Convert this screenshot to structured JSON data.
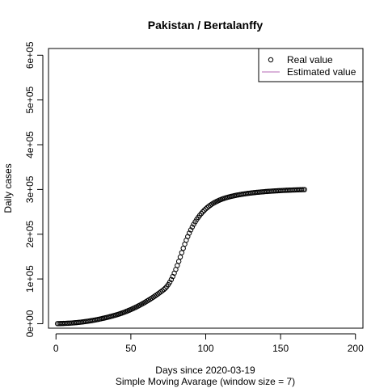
{
  "chart_data": {
    "type": "scatter",
    "title": "Pakistan / Bertalanffy",
    "xlabel": "Days since 2020-03-19",
    "subtitle": "Simple Moving Avarage (window size = 7)",
    "ylabel": "Daily cases",
    "xlim": [
      -5,
      205
    ],
    "ylim": [
      -10000,
      615000
    ],
    "xticks": [
      0,
      50,
      100,
      150,
      200
    ],
    "xtick_labels": [
      "0",
      "50",
      "100",
      "150",
      "200"
    ],
    "yticks": [
      0,
      100000,
      200000,
      300000,
      400000,
      500000,
      600000
    ],
    "ytick_labels": [
      "0e+00",
      "1e+05",
      "2e+05",
      "3e+05",
      "4e+05",
      "5e+05",
      "6e+05"
    ],
    "legend": {
      "position": "top-right",
      "entries": [
        {
          "label": "Real value",
          "marker": "open-circle",
          "color": "#000000"
        },
        {
          "label": "Estimated value",
          "marker": "line",
          "color": "#b469b4"
        }
      ]
    },
    "series": [
      {
        "name": "Real value",
        "marker": "open-circle",
        "color": "#000000",
        "x": [
          1,
          2,
          3,
          4,
          5,
          6,
          7,
          8,
          9,
          10,
          11,
          12,
          13,
          14,
          15,
          16,
          17,
          18,
          19,
          20,
          21,
          22,
          23,
          24,
          25,
          26,
          27,
          28,
          29,
          30,
          31,
          32,
          33,
          34,
          35,
          36,
          37,
          38,
          39,
          40,
          41,
          42,
          43,
          44,
          45,
          46,
          47,
          48,
          49,
          50,
          51,
          52,
          53,
          54,
          55,
          56,
          57,
          58,
          59,
          60,
          61,
          62,
          63,
          64,
          65,
          66,
          67,
          68,
          69,
          70,
          71,
          72,
          73,
          74,
          75,
          76,
          77,
          78,
          79,
          80,
          81,
          82,
          83,
          84,
          85,
          86,
          87,
          88,
          89,
          90,
          91,
          92,
          93,
          94,
          95,
          96,
          97,
          98,
          99,
          100,
          101,
          102,
          103,
          104,
          105,
          106,
          107,
          108,
          109,
          110,
          111,
          112,
          113,
          114,
          115,
          116,
          117,
          118,
          119,
          120,
          121,
          122,
          123,
          124,
          125,
          126,
          127,
          128,
          129,
          130,
          131,
          132,
          133,
          134,
          135,
          136,
          137,
          138,
          139,
          140,
          141,
          142,
          143,
          144,
          145,
          146,
          147,
          148,
          149,
          150,
          151,
          152,
          153,
          154,
          155,
          156,
          157,
          158,
          159,
          160,
          161,
          162,
          163,
          164,
          165,
          166
        ],
        "y": [
          200,
          300,
          400,
          500,
          600,
          750,
          900,
          1050,
          1250,
          1450,
          1700,
          1950,
          2250,
          2550,
          2900,
          3250,
          3650,
          4050,
          4500,
          4950,
          5450,
          5950,
          6500,
          7050,
          7650,
          8250,
          8900,
          9550,
          10250,
          10950,
          11700,
          12450,
          13250,
          14050,
          14900,
          15750,
          16650,
          17550,
          18500,
          19450,
          20450,
          21500,
          22600,
          23750,
          24950,
          26200,
          27500,
          28850,
          30250,
          31700,
          33200,
          34750,
          36350,
          38000,
          39700,
          41450,
          43250,
          45100,
          47000,
          48950,
          50950,
          53000,
          55100,
          57250,
          59450,
          61700,
          64000,
          66350,
          68750,
          71200,
          73700,
          76300,
          79300,
          83000,
          87500,
          92700,
          98700,
          105500,
          113000,
          121200,
          130000,
          139300,
          149000,
          158800,
          168500,
          177800,
          186600,
          194800,
          202400,
          209500,
          216100,
          222200,
          227800,
          232900,
          237600,
          242000,
          246100,
          249900,
          253400,
          256600,
          259500,
          262200,
          264700,
          267000,
          269100,
          271000,
          272800,
          274400,
          275900,
          277300,
          278600,
          279800,
          280900,
          281900,
          282800,
          283700,
          284500,
          285300,
          286000,
          286700,
          287400,
          288000,
          288600,
          289200,
          289700,
          290200,
          290700,
          291200,
          291600,
          292000,
          292400,
          292800,
          293100,
          293500,
          293800,
          294100,
          294400,
          294700,
          295000,
          295300,
          295500,
          295800,
          296000,
          296300,
          296500,
          296700,
          296900,
          297100,
          297300,
          297500,
          297700,
          297900,
          298000,
          298200,
          298300,
          298500,
          298600,
          298800,
          298900,
          299000,
          299200,
          299300,
          299400,
          299500,
          299600,
          299700
        ]
      }
    ]
  }
}
